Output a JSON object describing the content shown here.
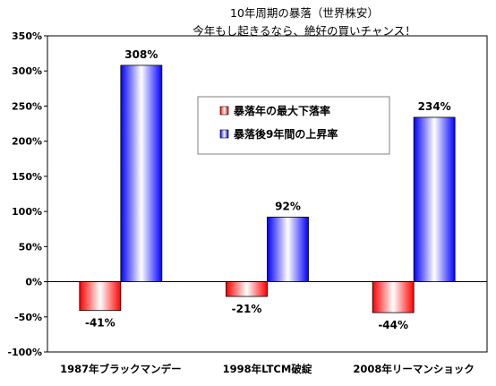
{
  "chart_data": {
    "type": "bar",
    "title_lines": [
      "10年周期の暴落（世界株安）",
      "今年もし起きるなら、絶好の買いチャンス！"
    ],
    "categories": [
      "1987年ブラックマンデー",
      "1998年LTCM破綻",
      "2008年リーマンショック"
    ],
    "series": [
      {
        "name": "暴落年の最大下落率",
        "values": [
          -41,
          -21,
          -44
        ],
        "value_labels": [
          "-41%",
          "-21%",
          "-44%"
        ],
        "color": "#ff0000",
        "gradient": "red-white"
      },
      {
        "name": "暴落後9年間の上昇率",
        "values": [
          308,
          92,
          234
        ],
        "value_labels": [
          "308%",
          "92%",
          "234%"
        ],
        "color": "#0000ff",
        "gradient": "blue-white"
      }
    ],
    "yticks": [
      "350%",
      "300%",
      "250%",
      "200%",
      "150%",
      "100%",
      "50%",
      "0%",
      "-50%",
      "-100%"
    ],
    "ylim": [
      -100,
      350
    ],
    "ystep": 50,
    "xlabel": "",
    "ylabel": "",
    "grid": false,
    "legend_position": "top-center"
  }
}
